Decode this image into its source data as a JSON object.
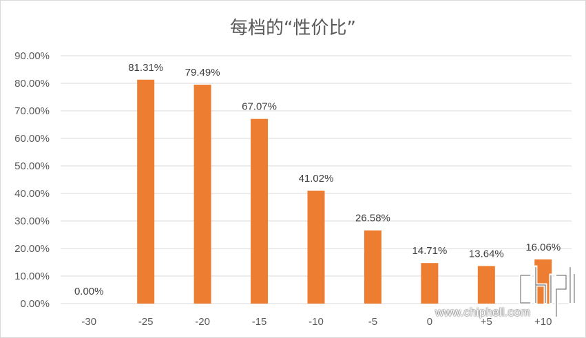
{
  "chart_data": {
    "type": "bar",
    "title": "每档的“性价比”",
    "categories": [
      "-30",
      "-25",
      "-20",
      "-15",
      "-10",
      "-5",
      "0",
      "+5",
      "+10"
    ],
    "values": [
      0.0,
      81.31,
      79.49,
      67.07,
      41.02,
      26.58,
      14.71,
      13.64,
      16.06
    ],
    "data_labels": [
      "0.00%",
      "81.31%",
      "79.49%",
      "67.07%",
      "41.02%",
      "26.58%",
      "14.71%",
      "13.64%",
      "16.06%"
    ],
    "y_ticks": [
      "0.00%",
      "10.00%",
      "20.00%",
      "30.00%",
      "40.00%",
      "50.00%",
      "60.00%",
      "70.00%",
      "80.00%",
      "90.00%"
    ],
    "ylim": [
      0,
      90
    ],
    "xlabel": "",
    "ylabel": "",
    "grid": true,
    "bar_color": "#ED7D31",
    "grid_color": "#d9d9d9"
  },
  "watermark": {
    "text": "www.chiphell.com",
    "logo": "chiphell-logo"
  }
}
